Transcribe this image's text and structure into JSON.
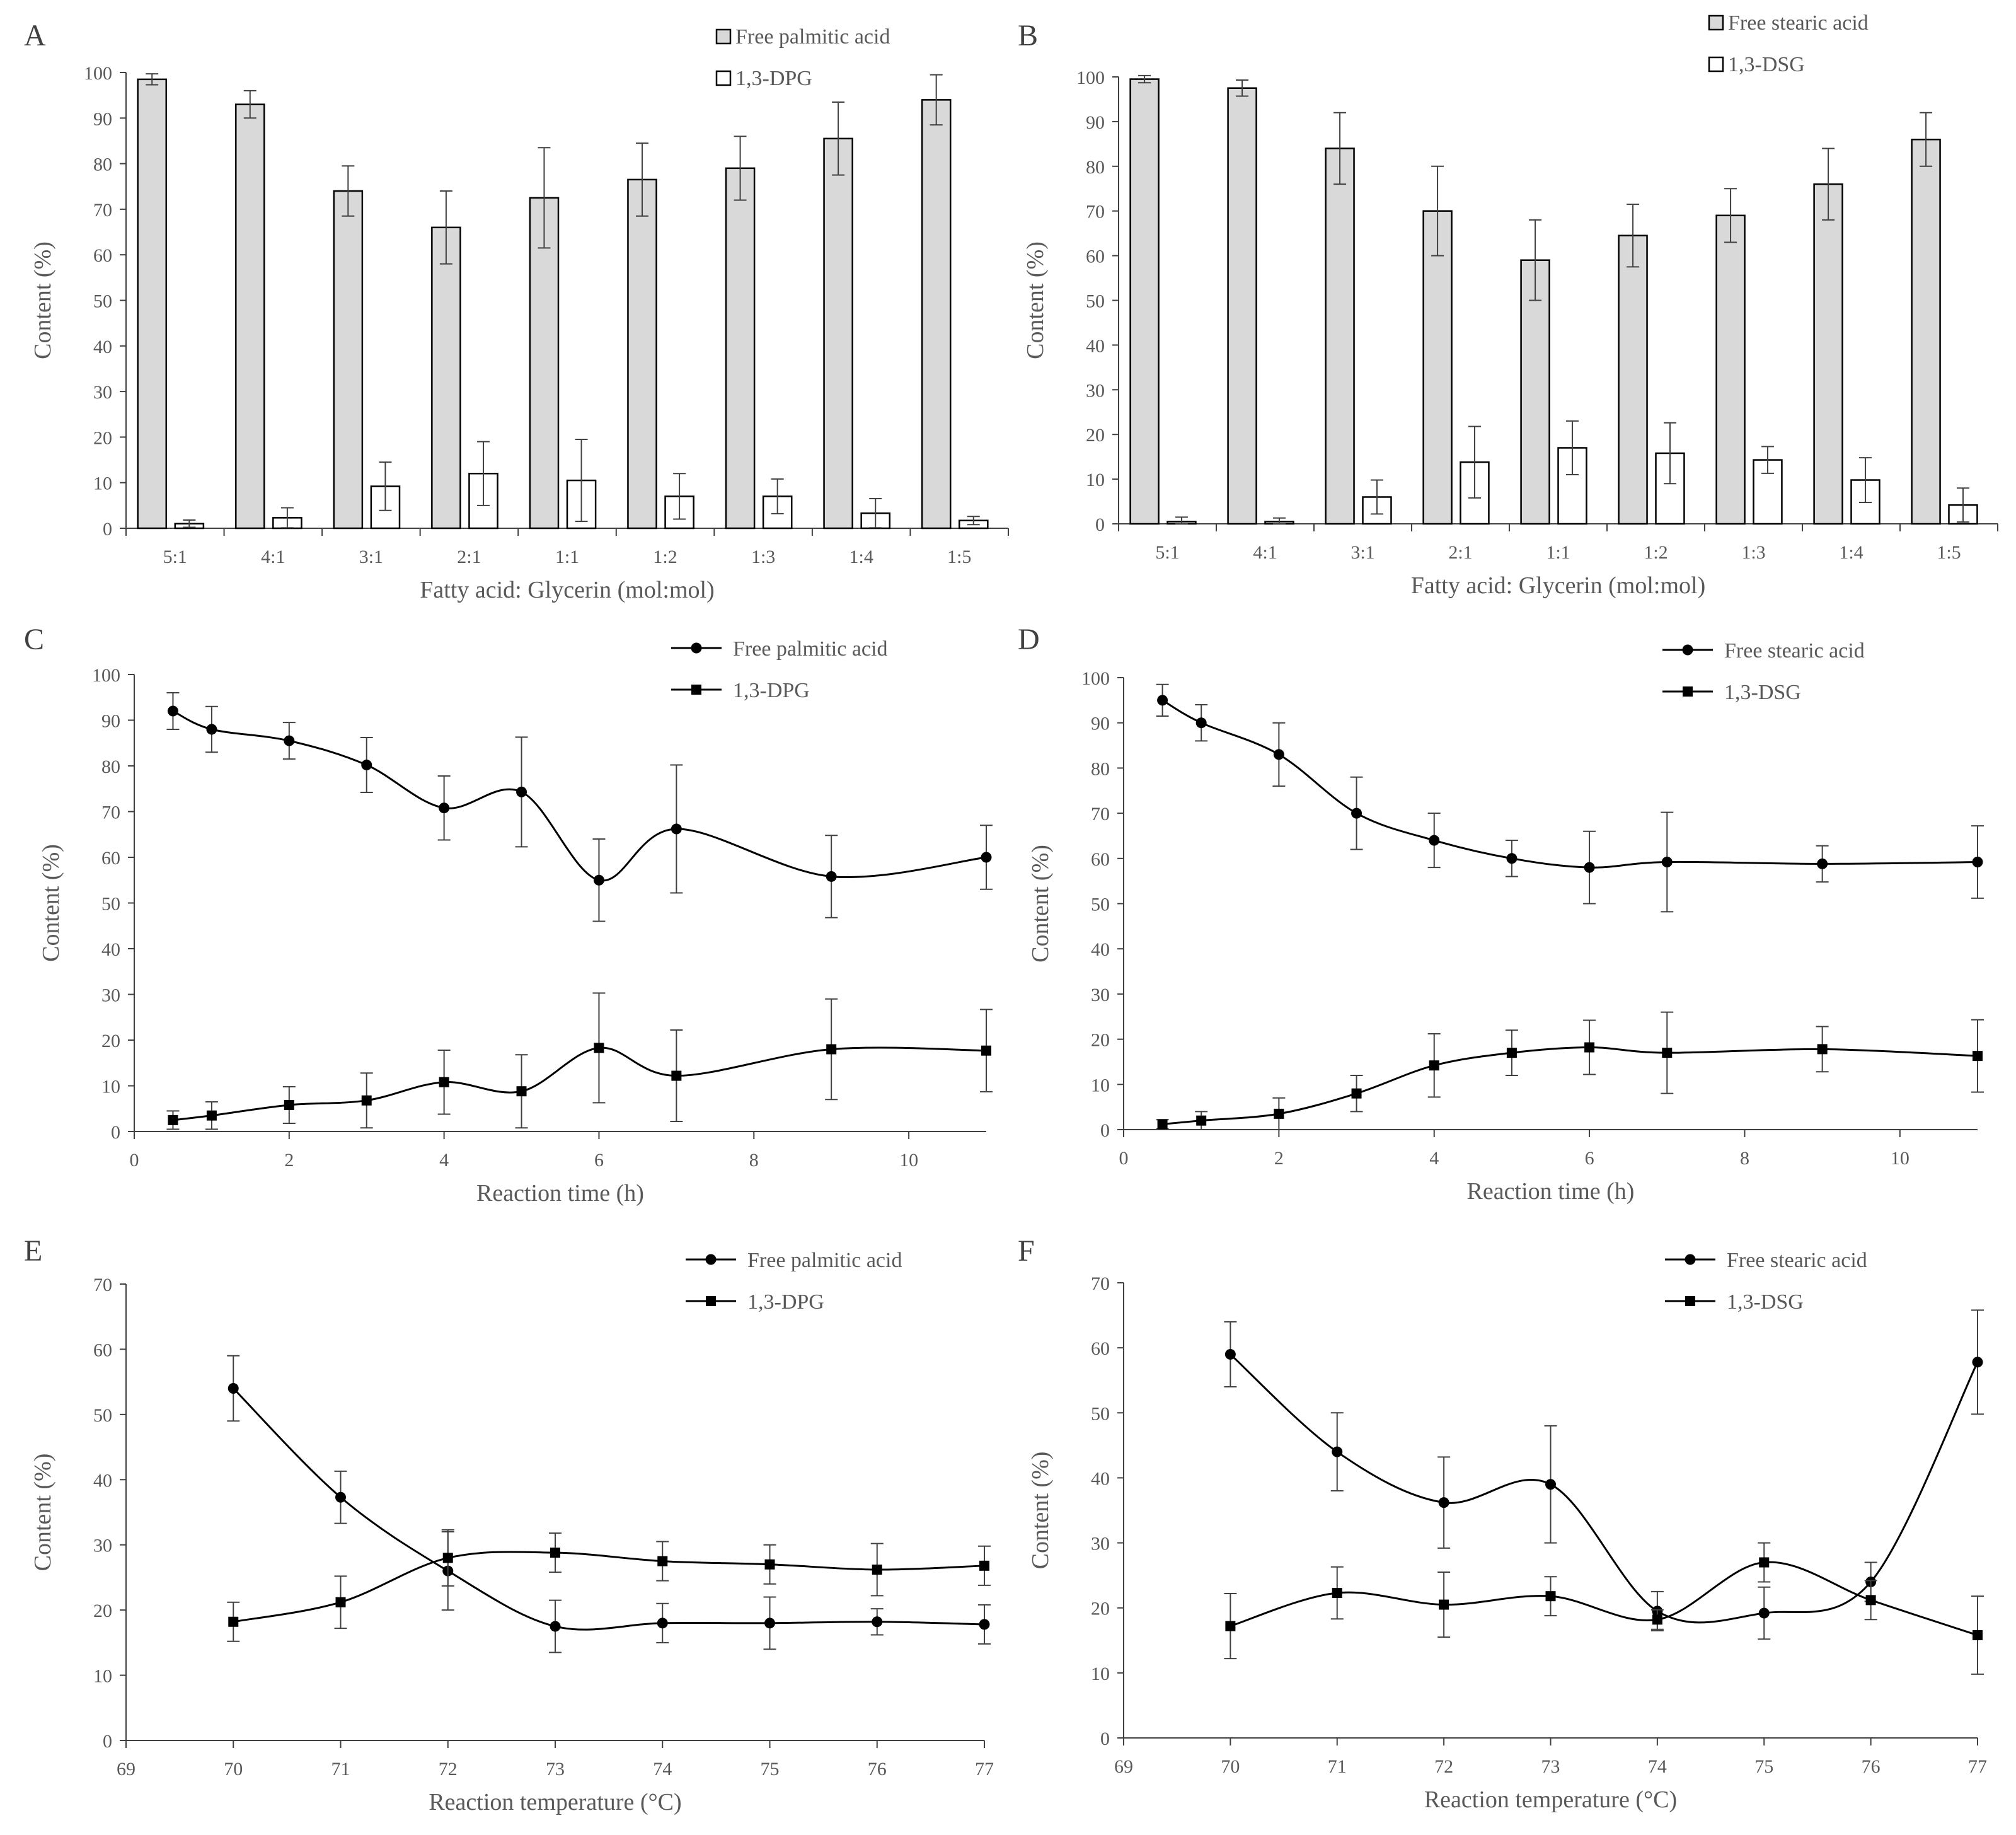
{
  "figure": {
    "background": "#ffffff",
    "text_color": "#595959",
    "bar_fill_series1": "#d9d9d9",
    "bar_fill_series2": "#ffffff",
    "line_color": "#000000"
  },
  "chart_data": [
    {
      "panel": "A",
      "type": "bar",
      "title": "",
      "categories": [
        "5:1",
        "4:1",
        "3:1",
        "2:1",
        "1:1",
        "1:2",
        "1:3",
        "1:4",
        "1:5"
      ],
      "series": [
        {
          "name": "Free palmitic acid",
          "values": [
            98.5,
            93,
            74,
            66,
            72.5,
            76.5,
            79,
            85.5,
            94
          ],
          "errors": [
            1.2,
            3,
            5.5,
            8,
            11,
            8,
            7,
            8,
            5.5
          ]
        },
        {
          "name": "1,3-DPG",
          "values": [
            1,
            2.3,
            9.2,
            12,
            10.5,
            7,
            7,
            3.3,
            1.7
          ],
          "errors": [
            0.8,
            2.2,
            5.3,
            7,
            9,
            5,
            3.8,
            3.2,
            0.9
          ]
        }
      ],
      "xlabel": "Fatty acid: Glycerin (mol:mol)",
      "ylabel": "Content (%)",
      "ylim": [
        0,
        100
      ],
      "yticks": [
        0,
        10,
        20,
        30,
        40,
        50,
        60,
        70,
        80,
        90,
        100
      ],
      "legend": "top-right",
      "grid": false
    },
    {
      "panel": "B",
      "type": "bar",
      "title": "",
      "categories": [
        "5:1",
        "4:1",
        "3:1",
        "2:1",
        "1:1",
        "1:2",
        "1:3",
        "1:4",
        "1:5"
      ],
      "series": [
        {
          "name": "Free stearic acid",
          "values": [
            99.5,
            97.5,
            84,
            70,
            59,
            64.5,
            69,
            76,
            86
          ],
          "errors": [
            0.8,
            1.8,
            8,
            10,
            9,
            7,
            6,
            8,
            6
          ]
        },
        {
          "name": "1,3-DSG",
          "values": [
            0.5,
            0.5,
            6,
            13.8,
            17,
            15.8,
            14.3,
            9.8,
            4.2
          ],
          "errors": [
            1,
            0.8,
            3.8,
            8,
            6,
            6.8,
            3,
            5,
            3.8
          ]
        }
      ],
      "xlabel": "Fatty acid: Glycerin (mol:mol)",
      "ylabel": "Content (%)",
      "ylim": [
        0,
        100
      ],
      "yticks": [
        0,
        10,
        20,
        30,
        40,
        50,
        60,
        70,
        80,
        90,
        100
      ],
      "legend": "top-right",
      "grid": false
    },
    {
      "panel": "C",
      "type": "line",
      "title": "",
      "series": [
        {
          "name": "Free palmitic acid",
          "marker": "circle",
          "x": [
            0.5,
            1,
            2,
            3,
            4,
            5,
            6,
            7,
            9,
            11
          ],
          "values": [
            92,
            88,
            85.5,
            80.2,
            70.8,
            74.3,
            55,
            66.2,
            55.8,
            60
          ],
          "errors": [
            4,
            5,
            4,
            6,
            7,
            12,
            9,
            14,
            9,
            7
          ]
        },
        {
          "name": "1,3-DPG",
          "marker": "square",
          "x": [
            0.5,
            1,
            2,
            3,
            4,
            5,
            6,
            7,
            9,
            11
          ],
          "values": [
            2.5,
            3.5,
            5.8,
            6.8,
            10.8,
            8.8,
            18.3,
            12.2,
            18,
            17.7
          ],
          "errors": [
            2,
            3,
            4,
            6,
            7,
            8,
            12,
            10,
            11,
            9
          ]
        }
      ],
      "xlabel": "Reaction time (h)",
      "ylabel": "Content (%)",
      "xlim": [
        0,
        11
      ],
      "xticks": [
        0,
        2,
        4,
        6,
        8,
        10
      ],
      "ylim": [
        0,
        100
      ],
      "yticks": [
        0,
        10,
        20,
        30,
        40,
        50,
        60,
        70,
        80,
        90,
        100
      ],
      "legend": "top-right",
      "grid": false
    },
    {
      "panel": "D",
      "type": "line",
      "title": "",
      "series": [
        {
          "name": "Free stearic acid",
          "marker": "circle",
          "x": [
            0.5,
            1,
            2,
            3,
            4,
            5,
            6,
            7,
            9,
            11
          ],
          "values": [
            95,
            90,
            83,
            70,
            64,
            60,
            58,
            59.2,
            58.8,
            59.2
          ],
          "errors": [
            3.5,
            4,
            7,
            8,
            6,
            4,
            8,
            11,
            4,
            8
          ]
        },
        {
          "name": "1,3-DSG",
          "marker": "square",
          "x": [
            0.5,
            1,
            2,
            3,
            4,
            5,
            6,
            7,
            9,
            11
          ],
          "values": [
            1.2,
            2,
            3.5,
            8,
            14.2,
            17,
            18.2,
            17,
            17.8,
            16.3
          ],
          "errors": [
            1,
            2,
            3.5,
            4,
            7,
            5,
            6,
            9,
            5,
            8
          ]
        }
      ],
      "xlabel": "Reaction time (h)",
      "ylabel": "Content (%)",
      "xlim": [
        0,
        11
      ],
      "xticks": [
        0,
        2,
        4,
        6,
        8,
        10
      ],
      "ylim": [
        0,
        100
      ],
      "yticks": [
        0,
        10,
        20,
        30,
        40,
        50,
        60,
        70,
        80,
        90,
        100
      ],
      "legend": "top-right",
      "grid": false
    },
    {
      "panel": "E",
      "type": "line",
      "title": "",
      "series": [
        {
          "name": "Free palmitic acid",
          "marker": "circle",
          "x": [
            70,
            71,
            72,
            73,
            74,
            75,
            76,
            77
          ],
          "values": [
            54,
            37.3,
            26,
            17.5,
            18,
            18,
            18.2,
            17.8
          ],
          "errors": [
            5,
            4,
            6,
            4,
            3,
            4,
            2,
            3
          ]
        },
        {
          "name": "1,3-DPG",
          "marker": "square",
          "x": [
            70,
            71,
            72,
            73,
            74,
            75,
            76,
            77
          ],
          "values": [
            18.2,
            21.2,
            28,
            28.8,
            27.5,
            27,
            26.2,
            26.8
          ],
          "errors": [
            3,
            4,
            4.3,
            3,
            3,
            3,
            4,
            3
          ]
        }
      ],
      "xlabel": "Reaction temperature (°C)",
      "ylabel": "Content (%)",
      "xlim": [
        69,
        77
      ],
      "xticks": [
        69,
        70,
        71,
        72,
        73,
        74,
        75,
        76,
        77
      ],
      "ylim": [
        0,
        70
      ],
      "yticks": [
        0,
        10,
        20,
        30,
        40,
        50,
        60,
        70
      ],
      "legend": "top-right",
      "grid": false
    },
    {
      "panel": "F",
      "type": "line",
      "title": "",
      "series": [
        {
          "name": "Free stearic acid",
          "marker": "circle",
          "x": [
            70,
            71,
            72,
            73,
            74,
            75,
            76,
            77
          ],
          "values": [
            59,
            44,
            36.2,
            39,
            19.5,
            19.2,
            24,
            57.8
          ],
          "errors": [
            5,
            6,
            7,
            9,
            3,
            4,
            3,
            8
          ]
        },
        {
          "name": "1,3-DSG",
          "marker": "square",
          "x": [
            70,
            71,
            72,
            73,
            74,
            75,
            76,
            77
          ],
          "values": [
            17.2,
            22.3,
            20.5,
            21.8,
            18.2,
            27,
            21.2,
            15.8
          ],
          "errors": [
            5,
            4,
            5,
            3,
            1.5,
            3,
            3,
            6
          ]
        }
      ],
      "xlabel": "Reaction temperature (°C)",
      "ylabel": "Content (%)",
      "xlim": [
        69,
        77
      ],
      "xticks": [
        69,
        70,
        71,
        72,
        73,
        74,
        75,
        76,
        77
      ],
      "ylim": [
        0,
        70
      ],
      "yticks": [
        0,
        10,
        20,
        30,
        40,
        50,
        60,
        70
      ],
      "legend": "top-right",
      "grid": false
    }
  ]
}
